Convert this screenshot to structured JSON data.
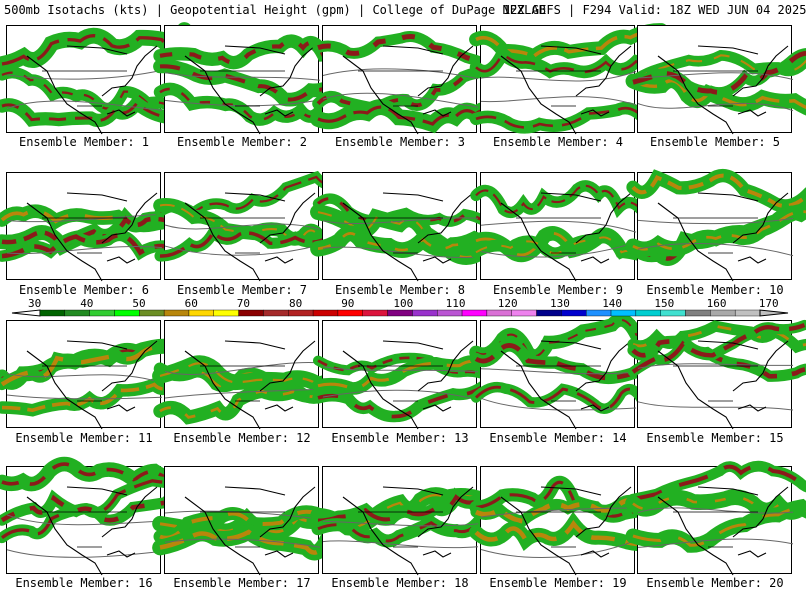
{
  "header": {
    "title_left": "500mb Isotachs (kts) | Geopotential Height (gpm) | College of DuPage NEXLAB",
    "title_right": "12Z GEFS | F294 Valid: 18Z WED JUN 04 2025"
  },
  "colorbar": {
    "ticks": [
      "30",
      "40",
      "50",
      "60",
      "70",
      "80",
      "90",
      "100",
      "110",
      "120",
      "130",
      "140",
      "150",
      "160",
      "170"
    ],
    "colors": [
      "#006400",
      "#228b22",
      "#32cd32",
      "#00ff00",
      "#6b8e23",
      "#b8860b",
      "#ffd700",
      "#ffff00",
      "#8b0000",
      "#a52a2a",
      "#b22222",
      "#cc0000",
      "#ff0000",
      "#dc143c",
      "#800080",
      "#9932cc",
      "#ba55d3",
      "#ff00ff",
      "#da70d6",
      "#ee82ee",
      "#00008b",
      "#0000cd",
      "#1e90ff",
      "#00bfff",
      "#00ced1",
      "#40e0d0",
      "#808080",
      "#a9a9a9",
      "#c0c0c0"
    ]
  },
  "panels": [
    {
      "caption": "Ensemble Member: 1"
    },
    {
      "caption": "Ensemble Member: 2"
    },
    {
      "caption": "Ensemble Member: 3"
    },
    {
      "caption": "Ensemble Member: 4"
    },
    {
      "caption": "Ensemble Member: 5"
    },
    {
      "caption": "Ensemble Member: 6"
    },
    {
      "caption": "Ensemble Member: 7"
    },
    {
      "caption": "Ensemble Member: 8"
    },
    {
      "caption": "Ensemble Member: 9"
    },
    {
      "caption": "Ensemble Member: 10"
    },
    {
      "caption": "Ensemble Member: 11"
    },
    {
      "caption": "Ensemble Member: 12"
    },
    {
      "caption": "Ensemble Member: 13"
    },
    {
      "caption": "Ensemble Member: 14"
    },
    {
      "caption": "Ensemble Member: 15"
    },
    {
      "caption": "Ensemble Member: 16"
    },
    {
      "caption": "Ensemble Member: 17"
    },
    {
      "caption": "Ensemble Member: 18"
    },
    {
      "caption": "Ensemble Member: 19"
    },
    {
      "caption": "Ensemble Member: 20"
    }
  ]
}
